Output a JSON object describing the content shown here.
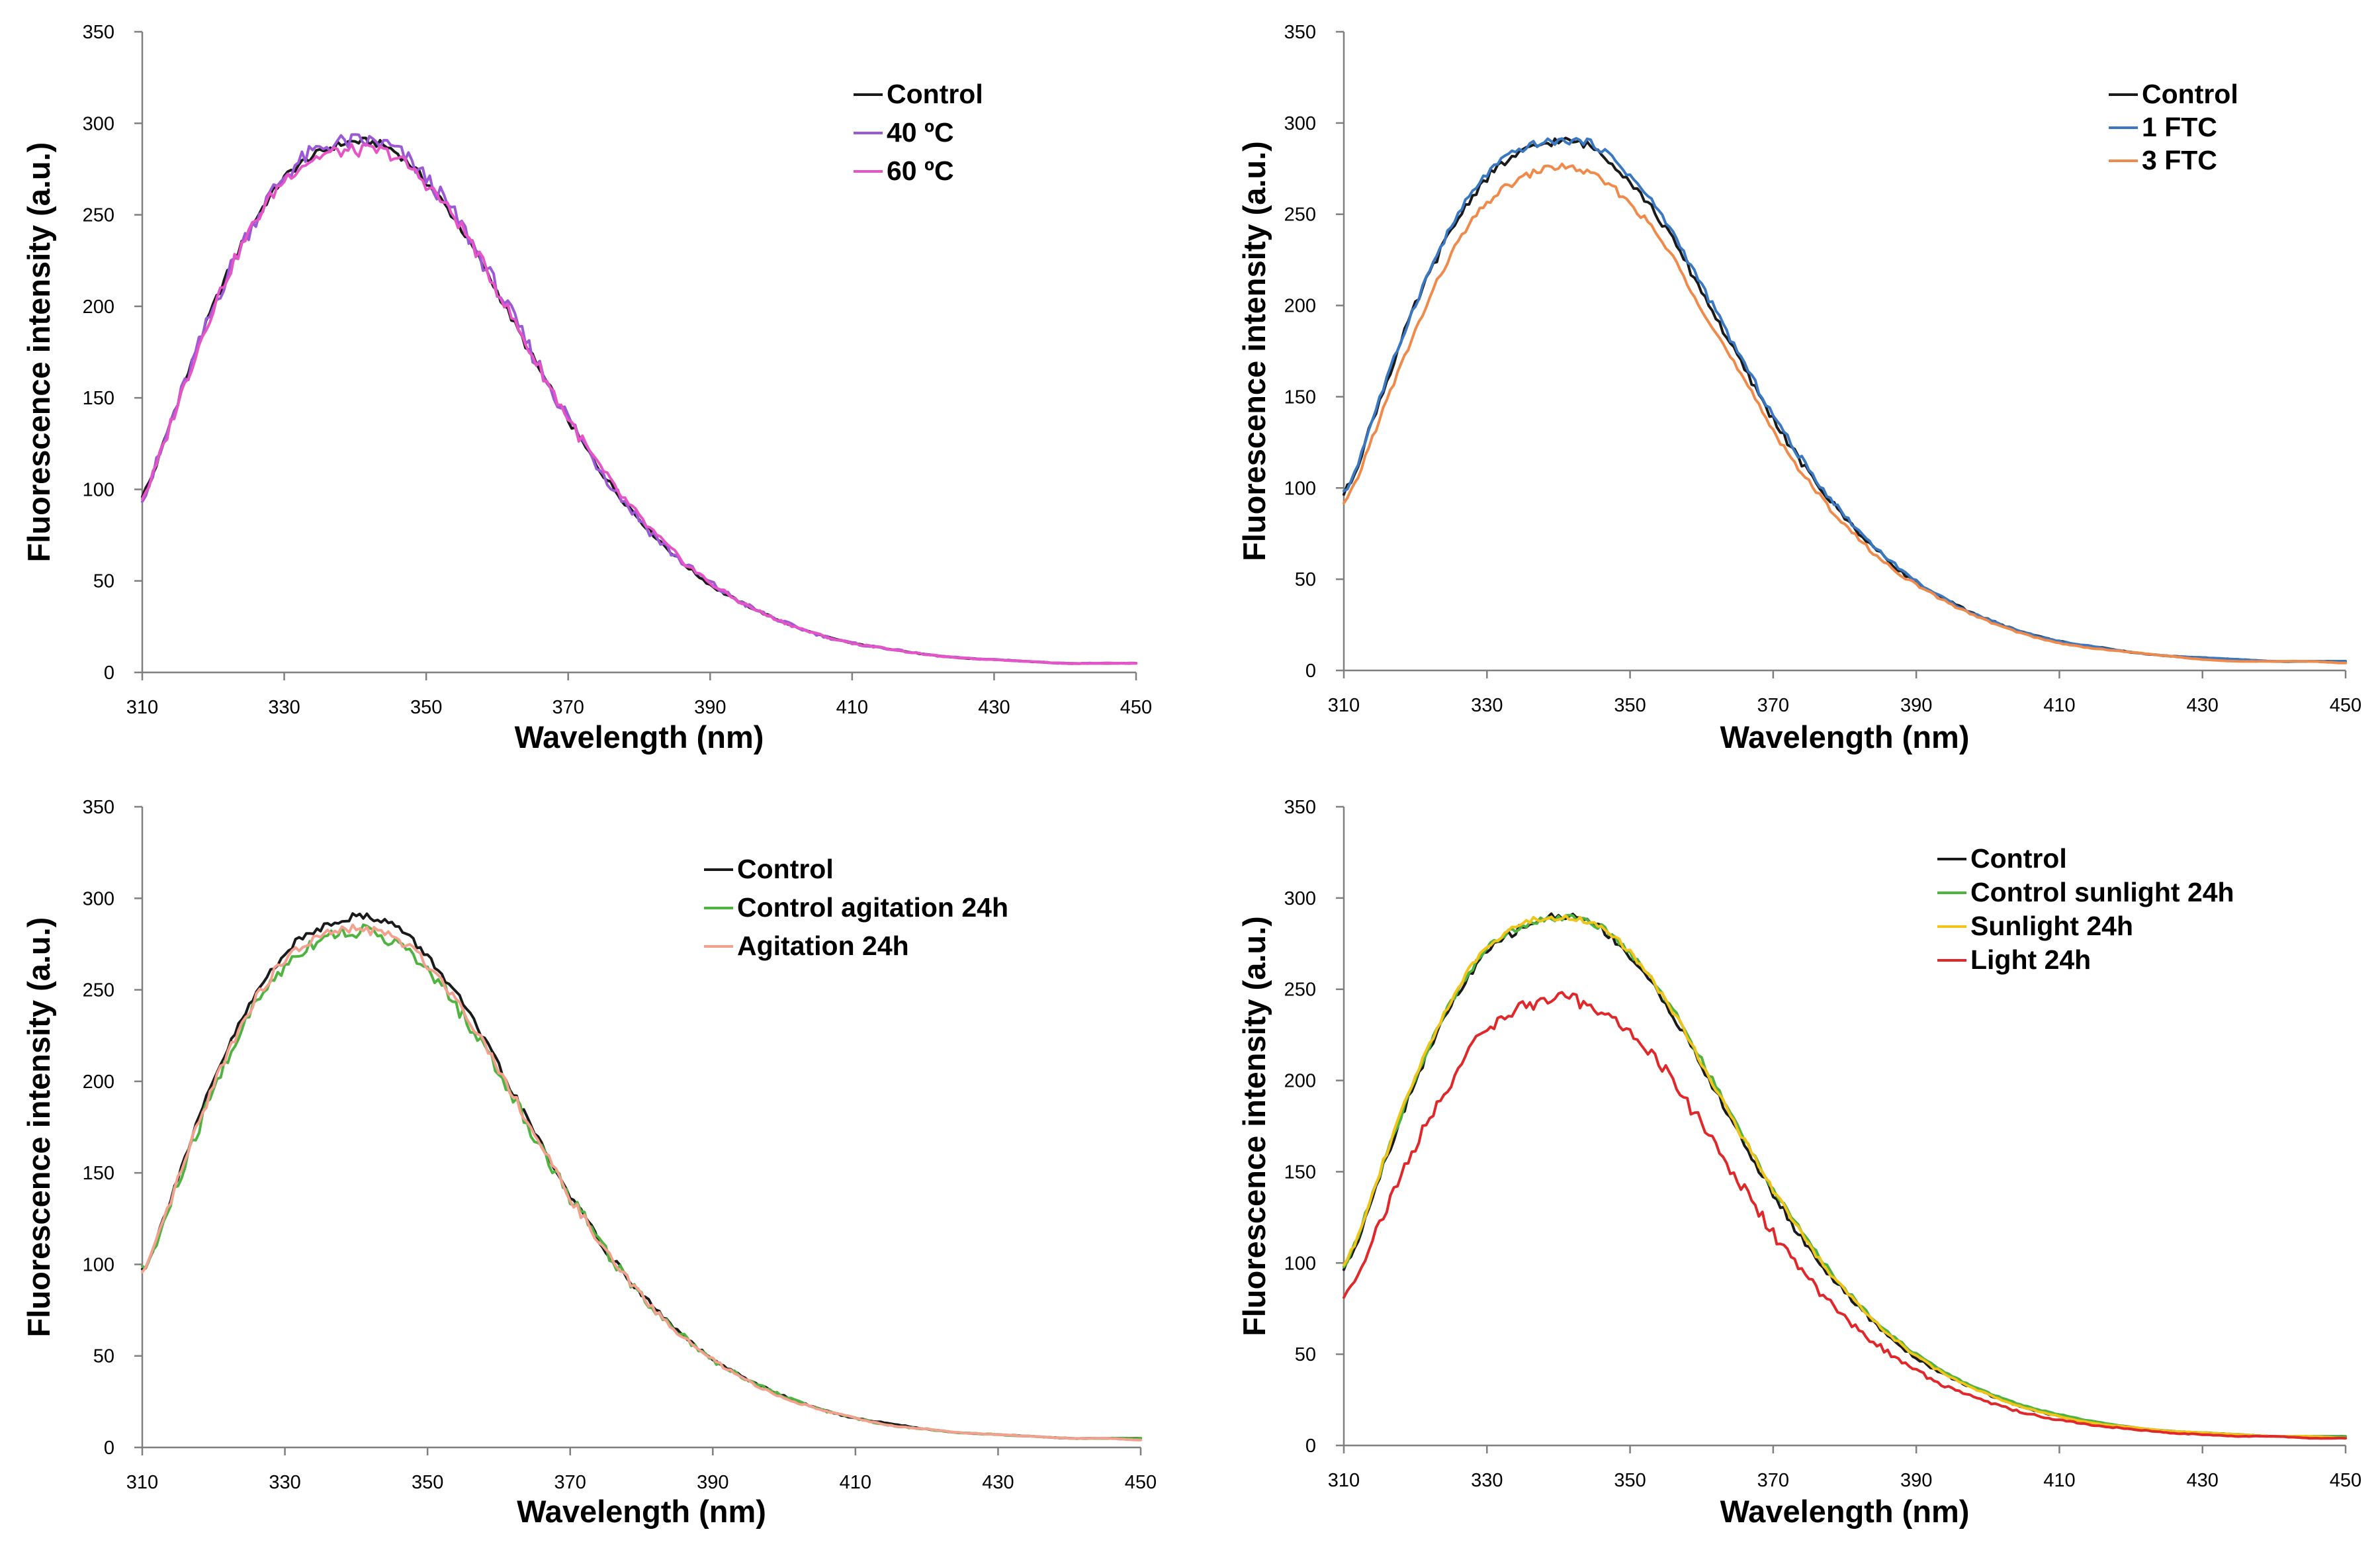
{
  "chart_data": [
    {
      "type": "line",
      "xlabel": "Wavelength (nm)",
      "ylabel": "Fluorescence intensity (a.u.)",
      "xlim": [
        310,
        450
      ],
      "ylim": [
        0,
        350
      ],
      "xticks": [
        "310",
        "330",
        "350",
        "370",
        "390",
        "410",
        "430",
        "450"
      ],
      "yticks": [
        "0",
        "50",
        "100",
        "150",
        "200",
        "250",
        "300",
        "350"
      ],
      "grid": false,
      "legend_position": "top-right",
      "x": [
        310,
        315,
        320,
        325,
        330,
        335,
        340,
        345,
        350,
        355,
        360,
        365,
        370,
        375,
        380,
        385,
        390,
        395,
        400,
        405,
        410,
        415,
        420,
        425,
        430,
        435,
        440,
        445,
        450
      ],
      "series": [
        {
          "name": "Control",
          "color": "#1a1a1a",
          "noise": 1.0,
          "values": [
            97,
            148,
            200,
            241,
            270,
            284,
            290,
            286,
            268,
            242,
            208,
            172,
            138,
            108,
            84,
            64,
            48,
            37,
            28,
            21,
            16,
            13,
            10,
            8,
            7,
            6,
            5,
            5,
            5
          ]
        },
        {
          "name": "40 ºC",
          "color": "#9b59d6",
          "noise": 2.2,
          "values": [
            97,
            147,
            199,
            241,
            271,
            286,
            290,
            287,
            270,
            244,
            210,
            174,
            139,
            109,
            84,
            64,
            49,
            37,
            28,
            21,
            16,
            13,
            10,
            8,
            7,
            6,
            5,
            5,
            5
          ]
        },
        {
          "name": "60 ºC",
          "color": "#e754c8",
          "noise": 1.6,
          "values": [
            96,
            147,
            199,
            240,
            269,
            282,
            285,
            283,
            267,
            243,
            209,
            173,
            139,
            109,
            85,
            65,
            49,
            37,
            28,
            21,
            16,
            13,
            10,
            8,
            7,
            6,
            5,
            5,
            5
          ]
        }
      ]
    },
    {
      "type": "line",
      "xlabel": "Wavelength (nm)",
      "ylabel": "Fluorescence intensity (a.u.)",
      "xlim": [
        310,
        450
      ],
      "ylim": [
        0,
        350
      ],
      "xticks": [
        "310",
        "330",
        "350",
        "370",
        "390",
        "410",
        "430",
        "450"
      ],
      "yticks": [
        "0",
        "50",
        "100",
        "150",
        "200",
        "250",
        "300",
        "350"
      ],
      "grid": false,
      "legend_position": "top-right",
      "x": [
        310,
        315,
        320,
        325,
        330,
        335,
        340,
        345,
        350,
        355,
        360,
        365,
        370,
        375,
        380,
        385,
        390,
        395,
        400,
        405,
        410,
        415,
        420,
        425,
        430,
        435,
        440,
        445,
        450
      ],
      "series": [
        {
          "name": "Control",
          "color": "#1a1a1a",
          "noise": 1.0,
          "values": [
            97,
            148,
            200,
            241,
            270,
            284,
            290,
            286,
            268,
            242,
            208,
            172,
            138,
            108,
            84,
            64,
            48,
            37,
            28,
            21,
            16,
            13,
            10,
            8,
            7,
            6,
            5,
            5,
            5
          ]
        },
        {
          "name": "1 FTC",
          "color": "#3a78c2",
          "noise": 0.9,
          "values": [
            97,
            149,
            201,
            243,
            272,
            286,
            290,
            288,
            271,
            246,
            211,
            175,
            140,
            110,
            85,
            65,
            49,
            37,
            28,
            21,
            16,
            13,
            10,
            8,
            7,
            6,
            5,
            5,
            5
          ]
        },
        {
          "name": "3 FTC",
          "color": "#f08a4b",
          "noise": 0.9,
          "values": [
            91,
            138,
            186,
            228,
            256,
            270,
            276,
            271,
            256,
            232,
            199,
            165,
            132,
            103,
            80,
            61,
            47,
            36,
            27,
            20,
            15,
            12,
            10,
            8,
            6,
            5,
            5,
            5,
            4
          ]
        }
      ]
    },
    {
      "type": "line",
      "xlabel": "Wavelength (nm)",
      "ylabel": "Fluorescence intensity (a.u.)",
      "xlim": [
        310,
        450
      ],
      "ylim": [
        0,
        350
      ],
      "xticks": [
        "310",
        "330",
        "350",
        "370",
        "390",
        "410",
        "430",
        "450"
      ],
      "yticks": [
        "0",
        "50",
        "100",
        "150",
        "200",
        "250",
        "300",
        "350"
      ],
      "grid": false,
      "legend_position": "top-right",
      "x": [
        310,
        315,
        320,
        325,
        330,
        335,
        340,
        345,
        350,
        355,
        360,
        365,
        370,
        375,
        380,
        385,
        390,
        395,
        400,
        405,
        410,
        415,
        420,
        425,
        430,
        435,
        440,
        445,
        450
      ],
      "series": [
        {
          "name": "Control",
          "color": "#1a1a1a",
          "noise": 1.0,
          "values": [
            97,
            148,
            200,
            241,
            270,
            284,
            290,
            286,
            268,
            242,
            208,
            172,
            138,
            108,
            84,
            64,
            48,
            37,
            28,
            21,
            16,
            13,
            10,
            8,
            7,
            6,
            5,
            5,
            5
          ]
        },
        {
          "name": "Control agitation 24h",
          "color": "#4fb33f",
          "noise": 1.8,
          "values": [
            96,
            144,
            195,
            236,
            263,
            278,
            282,
            277,
            260,
            236,
            205,
            170,
            137,
            108,
            83,
            64,
            48,
            37,
            28,
            21,
            16,
            12,
            10,
            8,
            7,
            6,
            5,
            5,
            5
          ]
        },
        {
          "name": "Agitation 24h",
          "color": "#f4a08f",
          "noise": 1.2,
          "values": [
            95,
            146,
            198,
            239,
            266,
            279,
            283,
            279,
            264,
            239,
            207,
            171,
            137,
            107,
            83,
            63,
            48,
            36,
            27,
            21,
            16,
            12,
            10,
            8,
            7,
            6,
            5,
            5,
            4
          ]
        }
      ]
    },
    {
      "type": "line",
      "xlabel": "Wavelength (nm)",
      "ylabel": "Fluorescence intensity (a.u.)",
      "xlim": [
        310,
        450
      ],
      "ylim": [
        0,
        350
      ],
      "xticks": [
        "310",
        "330",
        "350",
        "370",
        "390",
        "410",
        "430",
        "450"
      ],
      "yticks": [
        "0",
        "50",
        "100",
        "150",
        "200",
        "250",
        "300",
        "350"
      ],
      "grid": false,
      "legend_position": "top-right",
      "x": [
        310,
        315,
        320,
        325,
        330,
        335,
        340,
        345,
        350,
        355,
        360,
        365,
        370,
        375,
        380,
        385,
        390,
        395,
        400,
        405,
        410,
        415,
        420,
        425,
        430,
        435,
        440,
        445,
        450
      ],
      "series": [
        {
          "name": "Control",
          "color": "#1a1a1a",
          "noise": 1.0,
          "values": [
            97,
            148,
            200,
            241,
            270,
            284,
            290,
            286,
            268,
            242,
            208,
            172,
            138,
            108,
            84,
            64,
            48,
            37,
            28,
            21,
            16,
            13,
            10,
            8,
            7,
            6,
            5,
            5,
            5
          ]
        },
        {
          "name": "Control sunlight 24h",
          "color": "#4fb33f",
          "noise": 0.8,
          "values": [
            98,
            149,
            201,
            243,
            272,
            285,
            289,
            286,
            270,
            245,
            211,
            175,
            141,
            111,
            86,
            66,
            50,
            38,
            29,
            22,
            17,
            13,
            10,
            8,
            7,
            6,
            5,
            5,
            5
          ]
        },
        {
          "name": "Sunlight 24h",
          "color": "#f0c419",
          "noise": 0.8,
          "values": [
            99,
            150,
            202,
            244,
            273,
            286,
            289,
            286,
            270,
            244,
            210,
            174,
            140,
            110,
            85,
            65,
            49,
            37,
            28,
            21,
            16,
            12,
            10,
            8,
            7,
            6,
            5,
            5,
            4
          ]
        },
        {
          "name": "Light 24h",
          "color": "#e0282b",
          "noise": 1.6,
          "values": [
            82,
            122,
            164,
            200,
            228,
            240,
            245,
            240,
            226,
            205,
            176,
            146,
            116,
            91,
            70,
            54,
            41,
            31,
            24,
            18,
            14,
            11,
            9,
            7,
            6,
            5,
            5,
            4,
            4
          ]
        }
      ]
    }
  ]
}
